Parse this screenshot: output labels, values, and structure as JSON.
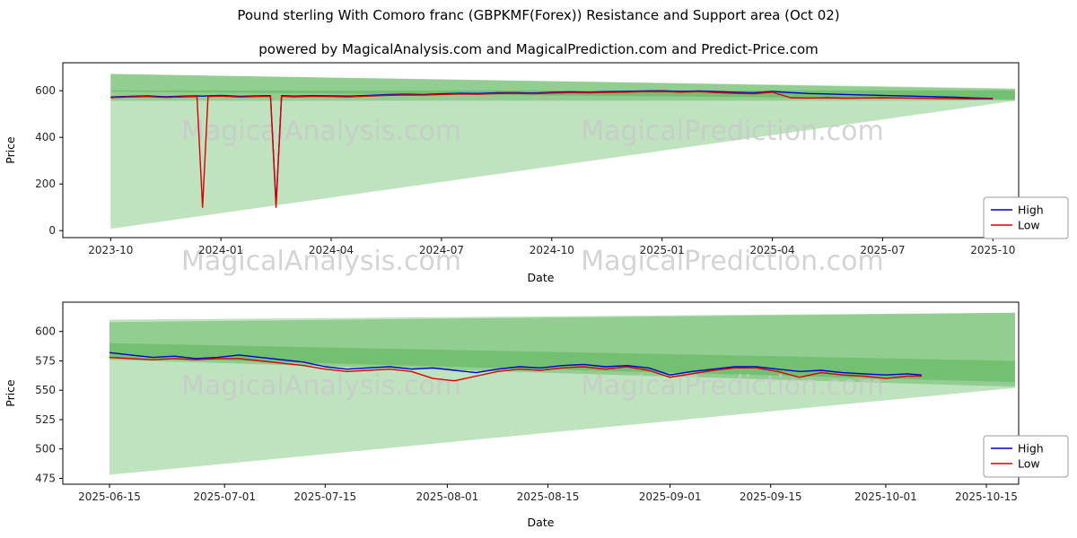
{
  "title": "Pound sterling With Comoro franc (GBPKMF(Forex)) Resistance and Support area (Oct 02)",
  "subtitle": "powered by MagicalAnalysis.com and MagicalPrediction.com and Predict-Price.com",
  "watermark_left": "MagicalAnalysis.com",
  "watermark_right": "MagicalPrediction.com",
  "legend": {
    "high_label": "High",
    "low_label": "Low"
  },
  "colors": {
    "high": "#0000cc",
    "low": "#dd0000",
    "band": "#2ca02c",
    "watermark": "#c9c9c9",
    "axis": "#000000",
    "tick_label": "#262626"
  },
  "chart_data": [
    {
      "type": "line",
      "ylabel": "Price",
      "xlabel": "Date",
      "xlim": [
        -1.3,
        24.7
      ],
      "ylim": [
        -30,
        720
      ],
      "grid": false,
      "legend_position": "lower right",
      "xticks": {
        "positions": [
          0,
          3,
          6,
          9,
          12,
          15,
          18,
          21,
          24
        ],
        "labels": [
          "2023-10",
          "2024-01",
          "2024-04",
          "2024-07",
          "2024-10",
          "2025-01",
          "2025-04",
          "2025-07",
          "2025-10"
        ]
      },
      "yticks": [
        0,
        200,
        400,
        600
      ],
      "bands": [
        {
          "x": [
            0,
            24.6
          ],
          "upper": [
            672,
            607
          ],
          "lower": [
            8,
            557
          ]
        },
        {
          "x": [
            0,
            24.6
          ],
          "upper": [
            672,
            610
          ],
          "lower": [
            596,
            563
          ]
        },
        {
          "x": [
            0,
            24.6
          ],
          "upper": [
            601,
            601
          ],
          "lower": [
            557,
            558
          ]
        }
      ],
      "series": [
        {
          "name": "High",
          "x": [
            0,
            0.5,
            1,
            1.5,
            2,
            2.35,
            2.5,
            2.65,
            3,
            3.5,
            4,
            4.35,
            4.5,
            4.65,
            5,
            5.5,
            6,
            6.5,
            7,
            7.5,
            8,
            8.5,
            9,
            9.5,
            10,
            10.5,
            11,
            11.5,
            12,
            12.5,
            13,
            13.5,
            14,
            14.5,
            15,
            15.5,
            16,
            16.5,
            17,
            17.5,
            18,
            18.5,
            19,
            19.5,
            20,
            20.5,
            21,
            21.5,
            22,
            22.5,
            23,
            23.5,
            24
          ],
          "values": [
            573,
            576,
            578,
            574,
            577,
            578,
            577,
            578,
            580,
            576,
            578,
            579,
            112,
            579,
            577,
            579,
            578,
            577,
            580,
            583,
            585,
            584,
            587,
            589,
            588,
            591,
            592,
            590,
            593,
            595,
            594,
            596,
            597,
            599,
            600,
            597,
            599,
            596,
            593,
            591,
            597,
            592,
            588,
            586,
            584,
            582,
            580,
            578,
            576,
            574,
            572,
            569,
            567
          ]
        },
        {
          "name": "Low",
          "x": [
            0,
            0.5,
            1,
            1.5,
            2,
            2.35,
            2.5,
            2.65,
            3,
            3.5,
            4,
            4.35,
            4.5,
            4.65,
            5,
            5.5,
            6,
            6.5,
            7,
            7.5,
            8,
            8.5,
            9,
            9.5,
            10,
            10.5,
            11,
            11.5,
            12,
            12.5,
            13,
            13.5,
            14,
            14.5,
            15,
            15.5,
            16,
            16.5,
            17,
            17.5,
            18,
            18.5,
            19,
            19.5,
            20,
            20.5,
            21,
            21.5,
            22,
            22.5,
            23,
            23.5,
            24
          ],
          "values": [
            570,
            573,
            575,
            571,
            574,
            575,
            100,
            575,
            577,
            573,
            575,
            576,
            100,
            576,
            574,
            576,
            575,
            574,
            577,
            580,
            582,
            581,
            584,
            586,
            585,
            588,
            589,
            587,
            590,
            592,
            591,
            593,
            594,
            596,
            597,
            594,
            596,
            592,
            589,
            587,
            594,
            570,
            569,
            570,
            568,
            569,
            570,
            569,
            568,
            567,
            566,
            565,
            565
          ]
        }
      ]
    },
    {
      "type": "line",
      "ylabel": "Price",
      "xlabel": "Date",
      "xlim": [
        -6.5,
        126.5
      ],
      "ylim": [
        470,
        625
      ],
      "grid": false,
      "legend_position": "lower right",
      "xticks": {
        "positions": [
          0,
          16,
          30,
          47,
          61,
          78,
          92,
          108,
          122
        ],
        "labels": [
          "2025-06-15",
          "2025-07-01",
          "2025-07-15",
          "2025-08-01",
          "2025-08-15",
          "2025-09-01",
          "2025-09-15",
          "2025-10-01",
          "2025-10-15"
        ]
      },
      "yticks": [
        475,
        500,
        525,
        550,
        575,
        600
      ],
      "bands": [
        {
          "x": [
            0,
            126
          ],
          "upper": [
            608,
            616
          ],
          "lower": [
            478,
            552
          ]
        },
        {
          "x": [
            0,
            126
          ],
          "upper": [
            610,
            616
          ],
          "lower": [
            578,
            557
          ]
        },
        {
          "x": [
            0,
            126
          ],
          "upper": [
            590,
            575
          ],
          "lower": [
            576,
            553
          ]
        }
      ],
      "series": [
        {
          "name": "High",
          "x": [
            0,
            3,
            6,
            9,
            12,
            15,
            18,
            21,
            24,
            27,
            30,
            33,
            36,
            39,
            42,
            45,
            48,
            51,
            54,
            57,
            60,
            63,
            66,
            69,
            72,
            75,
            78,
            81,
            84,
            87,
            90,
            93,
            96,
            99,
            102,
            105,
            108,
            111,
            113
          ],
          "values": [
            582,
            580,
            578,
            579,
            577,
            578,
            580,
            578,
            576,
            574,
            570,
            568,
            569,
            570,
            568,
            569,
            567,
            565,
            568,
            570,
            569,
            571,
            572,
            570,
            571,
            569,
            563,
            566,
            568,
            570,
            570,
            568,
            566,
            567,
            565,
            564,
            563,
            564,
            563
          ]
        },
        {
          "name": "Low",
          "x": [
            0,
            3,
            6,
            9,
            12,
            15,
            18,
            21,
            24,
            27,
            30,
            33,
            36,
            39,
            42,
            45,
            48,
            51,
            54,
            57,
            60,
            63,
            66,
            69,
            72,
            75,
            78,
            81,
            84,
            87,
            90,
            93,
            96,
            99,
            102,
            105,
            108,
            111,
            113
          ],
          "values": [
            578,
            577,
            576,
            577,
            576,
            577,
            577,
            575,
            573,
            571,
            568,
            566,
            567,
            568,
            566,
            560,
            558,
            562,
            566,
            568,
            567,
            569,
            570,
            568,
            570,
            567,
            561,
            564,
            567,
            569,
            569,
            566,
            561,
            565,
            563,
            562,
            560,
            562,
            562
          ]
        }
      ]
    }
  ]
}
